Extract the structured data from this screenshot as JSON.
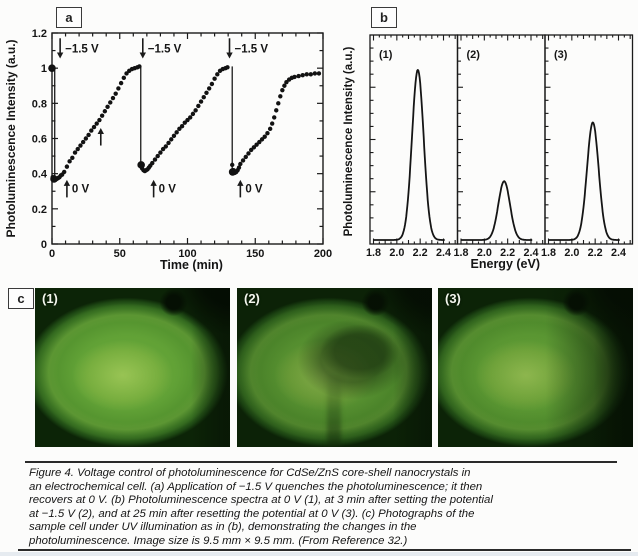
{
  "figure": {
    "panel_tags": {
      "a": "a",
      "b": "b",
      "c": "c"
    },
    "caption_lines": [
      "Figure 4. Voltage control of photoluminescence for CdSe/ZnS core-shell nanocrystals in",
      "an electrochemical cell. (a) Application of −1.5 V quenches the photoluminescence; it then",
      "recovers at 0 V. (b) Photoluminescence spectra at 0 V (1), at 3 min after setting the potential",
      "at −1.5 V (2), and at 25 min after resetting the potential at 0 V (3). (c) Photographs of the",
      "sample cell under UV illumination as in (b), demonstrating the changes in the",
      "photoluminescence. Image size is 9.5 mm × 9.5 mm. (From Reference 32.)"
    ]
  },
  "chart_data": [
    {
      "type": "scatter",
      "panel": "a",
      "xlabel": "Time (min)",
      "ylabel": "Photoluminescence Intensity (a.u.)",
      "xlim": [
        0,
        200
      ],
      "ylim": [
        0,
        1.2
      ],
      "x_ticks": [
        0,
        50,
        100,
        150,
        200
      ],
      "x_tick_labels": [
        "0",
        "50",
        "100",
        "150",
        "200"
      ],
      "x_minor_step": 10,
      "y_ticks": [
        0,
        0.2,
        0.4,
        0.6,
        0.8,
        1,
        1.2
      ],
      "y_tick_labels": [
        "0",
        "0.2",
        "0.4",
        "0.6",
        "0.8",
        "1",
        "1.2"
      ],
      "y_minor_step": 0.1,
      "grid": false,
      "points": [
        [
          0.5,
          0.38
        ],
        [
          1.5,
          0.37
        ],
        [
          2.5,
          0.365
        ],
        [
          3.5,
          0.37
        ],
        [
          4.5,
          0.375
        ],
        [
          5.5,
          0.38
        ],
        [
          6.5,
          0.39
        ],
        [
          7.5,
          0.395
        ],
        [
          9,
          0.41
        ],
        [
          11,
          0.44
        ],
        [
          13,
          0.47
        ],
        [
          15,
          0.49
        ],
        [
          17,
          0.52
        ],
        [
          19,
          0.54
        ],
        [
          21,
          0.56
        ],
        [
          23,
          0.58
        ],
        [
          25,
          0.6
        ],
        [
          27,
          0.62
        ],
        [
          29,
          0.645
        ],
        [
          31,
          0.665
        ],
        [
          33,
          0.685
        ],
        [
          35,
          0.705
        ],
        [
          37,
          0.73
        ],
        [
          39,
          0.755
        ],
        [
          41,
          0.78
        ],
        [
          43,
          0.805
        ],
        [
          45,
          0.83
        ],
        [
          47,
          0.855
        ],
        [
          49,
          0.885
        ],
        [
          51,
          0.915
        ],
        [
          53,
          0.945
        ],
        [
          55,
          0.97
        ],
        [
          57,
          0.985
        ],
        [
          59,
          0.995
        ],
        [
          61,
          1.0
        ],
        [
          63,
          1.005
        ],
        [
          64.5,
          1.01
        ],
        [
          65.5,
          0.455
        ],
        [
          66.5,
          0.43
        ],
        [
          67.5,
          0.42
        ],
        [
          68.5,
          0.415
        ],
        [
          69.5,
          0.42
        ],
        [
          70.5,
          0.425
        ],
        [
          71.5,
          0.435
        ],
        [
          72.5,
          0.445
        ],
        [
          74,
          0.46
        ],
        [
          76,
          0.48
        ],
        [
          78,
          0.5
        ],
        [
          80,
          0.52
        ],
        [
          82,
          0.54
        ],
        [
          84,
          0.555
        ],
        [
          86,
          0.575
        ],
        [
          88,
          0.595
        ],
        [
          90,
          0.615
        ],
        [
          92,
          0.635
        ],
        [
          94,
          0.655
        ],
        [
          96,
          0.67
        ],
        [
          98,
          0.69
        ],
        [
          100,
          0.705
        ],
        [
          102,
          0.72
        ],
        [
          104,
          0.74
        ],
        [
          106,
          0.76
        ],
        [
          108,
          0.785
        ],
        [
          110,
          0.81
        ],
        [
          112,
          0.835
        ],
        [
          114,
          0.86
        ],
        [
          116,
          0.885
        ],
        [
          118,
          0.91
        ],
        [
          120,
          0.94
        ],
        [
          122,
          0.965
        ],
        [
          124,
          0.985
        ],
        [
          126,
          0.995
        ],
        [
          128,
          1.0
        ],
        [
          129.5,
          1.005
        ],
        [
          133,
          0.45
        ],
        [
          134,
          0.42
        ],
        [
          135,
          0.405
        ],
        [
          136,
          0.41
        ],
        [
          137,
          0.42
        ],
        [
          138,
          0.435
        ],
        [
          139,
          0.455
        ],
        [
          141,
          0.475
        ],
        [
          143,
          0.495
        ],
        [
          145,
          0.515
        ],
        [
          147,
          0.535
        ],
        [
          149,
          0.55
        ],
        [
          151,
          0.565
        ],
        [
          153,
          0.58
        ],
        [
          155,
          0.595
        ],
        [
          157,
          0.61
        ],
        [
          159,
          0.63
        ],
        [
          161,
          0.655
        ],
        [
          162.5,
          0.685
        ],
        [
          164,
          0.72
        ],
        [
          165.5,
          0.76
        ],
        [
          167,
          0.8
        ],
        [
          168.5,
          0.84
        ],
        [
          170,
          0.875
        ],
        [
          171.5,
          0.9
        ],
        [
          173,
          0.92
        ],
        [
          175,
          0.935
        ],
        [
          177,
          0.945
        ],
        [
          179,
          0.95
        ],
        [
          182,
          0.955
        ],
        [
          185,
          0.96
        ],
        [
          188,
          0.965
        ],
        [
          191,
          0.965
        ],
        [
          194,
          0.97
        ],
        [
          197,
          0.97
        ]
      ],
      "big_points": [
        [
          0,
          1.0
        ],
        [
          1.5,
          0.37
        ],
        [
          65.8,
          0.45
        ],
        [
          133.3,
          0.41
        ]
      ],
      "drop_lines": [
        [
          2,
          1.0,
          0.37
        ],
        [
          65.5,
          1.01,
          0.455
        ],
        [
          133,
          1.01,
          0.415
        ]
      ],
      "annotations": [
        {
          "kind": "arrow-down",
          "t": 6,
          "y_tip": 1.055,
          "len": 0.115,
          "label": "−1.5 V"
        },
        {
          "kind": "arrow-down",
          "t": 67,
          "y_tip": 1.055,
          "len": 0.115,
          "label": "−1.5 V"
        },
        {
          "kind": "arrow-down",
          "t": 131,
          "y_tip": 1.055,
          "len": 0.115,
          "label": "−1.5 V"
        },
        {
          "kind": "arrow-up",
          "t": 11,
          "y_tip": 0.365,
          "len": 0.1,
          "label": "0 V"
        },
        {
          "kind": "arrow-up",
          "t": 75,
          "y_tip": 0.365,
          "len": 0.1,
          "label": "0 V"
        },
        {
          "kind": "arrow-up",
          "t": 139,
          "y_tip": 0.365,
          "len": 0.1,
          "label": "0 V"
        },
        {
          "kind": "arrow-up",
          "t": 36,
          "y_tip": 0.66,
          "len": 0.1,
          "label": ""
        }
      ]
    },
    {
      "type": "line",
      "panel": "b",
      "xlabel": "Energy (eV)",
      "ylabel": "Photoluminescence Intensity (a.u.)",
      "xlim": [
        1.77,
        2.52
      ],
      "x_ticks": [
        1.8,
        2.0,
        2.2,
        2.4
      ],
      "x_tick_labels": [
        "1.8",
        "2.0",
        "2.2",
        "2.4"
      ],
      "x_minor_step": 0.05,
      "grid": false,
      "panels": [
        {
          "label": "(1)",
          "peak_center": 2.18,
          "peak_height_rel": 0.81,
          "sigma": 0.05
        },
        {
          "label": "(2)",
          "peak_center": 2.17,
          "peak_height_rel": 0.28,
          "sigma": 0.05
        },
        {
          "label": "(3)",
          "peak_center": 2.18,
          "peak_height_rel": 0.56,
          "sigma": 0.05
        }
      ]
    }
  ],
  "panel_c": {
    "photos": [
      {
        "label": "(1)"
      },
      {
        "label": "(2)"
      },
      {
        "label": "(3)"
      }
    ],
    "colors": {
      "glow_center": "#8fc24a",
      "glow_mid": "#61a136",
      "glow_edge": "#2c5c1c",
      "photo_background": "#0a1b06",
      "ink": "#1a1a1a"
    }
  }
}
